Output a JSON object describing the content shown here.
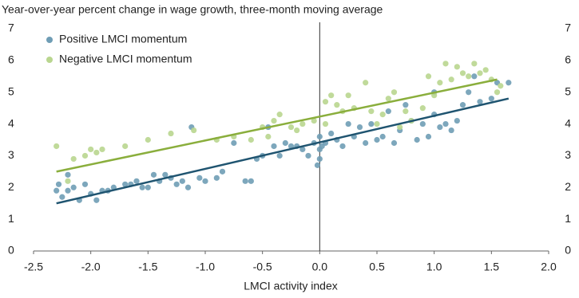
{
  "chart_data": {
    "type": "scatter",
    "title": "Year-over-year percent change in wage growth, three-month moving average",
    "xlabel": "LMCI activity index",
    "xlim": [
      -2.5,
      2.0
    ],
    "xticks": [
      -2.5,
      {
        "value": -2,
        "label": "-2.0"
      },
      -1.5,
      {
        "value": -1,
        "label": "-1.0"
      },
      -0.5,
      {
        "value": 0,
        "label": "0.0"
      },
      0.5,
      {
        "value": 1,
        "label": "1.0"
      },
      1.5,
      {
        "value": 2,
        "label": "2.0"
      }
    ],
    "ylim": [
      0,
      7
    ],
    "yticks": [
      0,
      1,
      2,
      3,
      4,
      5,
      6,
      7
    ],
    "y2lim": [
      0,
      7
    ],
    "y2ticks": [
      0,
      1,
      2,
      3,
      4,
      5,
      6,
      7
    ],
    "legend": "top-left",
    "series": [
      {
        "name": "Positive LMCI momentum",
        "color": "#6f9db5",
        "line_color": "#1f5470",
        "x": [
          -2.3,
          -2.28,
          -2.25,
          -2.2,
          -2.2,
          -2.15,
          -2.1,
          -2.05,
          -2.0,
          -1.95,
          -1.9,
          -1.85,
          -1.8,
          -1.7,
          -1.65,
          -1.6,
          -1.55,
          -1.5,
          -1.45,
          -1.4,
          -1.35,
          -1.3,
          -1.25,
          -1.2,
          -1.15,
          -1.12,
          -1.05,
          -1.0,
          -0.9,
          -0.85,
          -0.75,
          -0.65,
          -0.6,
          -0.55,
          -0.5,
          -0.45,
          -0.4,
          -0.35,
          -0.3,
          -0.25,
          -0.2,
          -0.15,
          -0.1,
          -0.05,
          0.0,
          0.0,
          0.02,
          0.05,
          0.1,
          0.15,
          0.2,
          0.25,
          0.3,
          0.35,
          0.4,
          0.45,
          0.5,
          0.55,
          0.6,
          0.65,
          0.7,
          0.75,
          0.8,
          0.85,
          0.9,
          0.95,
          1.0,
          1.0,
          1.05,
          1.1,
          1.15,
          1.2,
          1.25,
          1.3,
          1.35,
          1.4,
          1.5,
          1.55,
          1.65,
          -0.02,
          0.0
        ],
        "values": [
          1.9,
          2.1,
          1.7,
          2.4,
          1.9,
          2.0,
          1.6,
          2.1,
          1.8,
          1.6,
          1.9,
          1.9,
          2.0,
          2.1,
          2.1,
          2.2,
          2.0,
          2.0,
          2.4,
          2.2,
          2.4,
          2.3,
          2.1,
          2.2,
          2.0,
          3.9,
          2.3,
          2.2,
          2.3,
          2.5,
          3.4,
          2.2,
          2.2,
          2.9,
          3.0,
          3.9,
          3.3,
          3.0,
          3.4,
          3.3,
          3.3,
          3.2,
          3.0,
          3.4,
          2.9,
          3.6,
          3.3,
          3.4,
          3.7,
          3.5,
          3.3,
          4.0,
          3.6,
          3.9,
          3.4,
          4.0,
          3.5,
          3.6,
          4.4,
          3.4,
          3.8,
          4.6,
          4.1,
          3.5,
          4.0,
          3.6,
          4.3,
          5.0,
          3.9,
          4.0,
          3.8,
          4.1,
          4.6,
          5.0,
          5.5,
          4.7,
          4.8,
          5.3,
          5.3,
          2.7,
          3.2
        ],
        "trend_x": [
          -2.3,
          1.65
        ],
        "trend_y": [
          1.5,
          4.8
        ]
      },
      {
        "name": "Negative LMCI momentum",
        "color": "#b9d68f",
        "line_color": "#8aae3c",
        "x": [
          -2.3,
          -2.2,
          -2.15,
          -2.05,
          -2.0,
          -1.95,
          -1.9,
          -1.7,
          -1.5,
          -1.3,
          -1.1,
          -0.9,
          -0.75,
          -0.6,
          -0.5,
          -0.45,
          -0.4,
          -0.35,
          -0.25,
          -0.2,
          -0.15,
          -0.05,
          0.05,
          0.05,
          0.1,
          0.15,
          0.2,
          0.25,
          0.3,
          0.4,
          0.45,
          0.5,
          0.55,
          0.6,
          0.65,
          0.7,
          0.75,
          0.8,
          0.9,
          0.95,
          1.0,
          1.05,
          1.1,
          1.15,
          1.2,
          1.25,
          1.3,
          1.35,
          1.4,
          1.45,
          1.5,
          1.55,
          1.58
        ],
        "values": [
          3.3,
          2.2,
          2.9,
          3.0,
          3.2,
          3.1,
          3.2,
          3.3,
          3.5,
          3.7,
          3.8,
          3.5,
          3.6,
          3.5,
          3.9,
          3.6,
          4.1,
          4.3,
          3.9,
          3.8,
          4.0,
          4.1,
          4.0,
          4.7,
          4.9,
          4.6,
          4.4,
          4.9,
          4.5,
          5.3,
          4.4,
          4.0,
          4.3,
          4.8,
          5.0,
          3.9,
          4.4,
          4.1,
          4.5,
          5.5,
          4.9,
          5.3,
          5.9,
          5.4,
          5.8,
          5.6,
          5.5,
          5.9,
          5.6,
          5.7,
          5.4,
          5.0,
          5.2
        ],
        "trend_x": [
          -2.3,
          1.55
        ],
        "trend_y": [
          2.5,
          5.4
        ]
      }
    ]
  }
}
